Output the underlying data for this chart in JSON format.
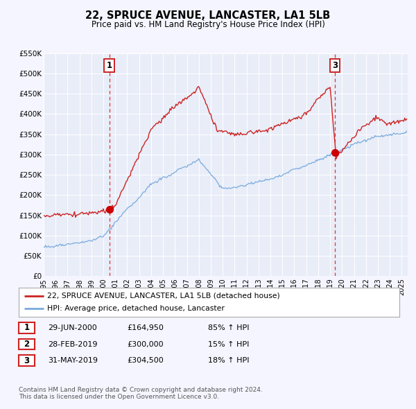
{
  "title": "22, SPRUCE AVENUE, LANCASTER, LA1 5LB",
  "subtitle": "Price paid vs. HM Land Registry's House Price Index (HPI)",
  "background_color": "#f5f5ff",
  "plot_bg_color": "#e8edf8",
  "hpi_color": "#7aaadd",
  "price_color": "#cc2222",
  "vline_color": "#dd3333",
  "marker_color": "#cc0000",
  "sale_1_x": 2000.49,
  "sale_1_y": 164950,
  "sale_3_x": 2019.41,
  "sale_3_y": 304500,
  "ylim": [
    0,
    550000
  ],
  "yticks": [
    0,
    50000,
    100000,
    150000,
    200000,
    250000,
    300000,
    350000,
    400000,
    450000,
    500000,
    550000
  ],
  "ytick_labels": [
    "£0",
    "£50K",
    "£100K",
    "£150K",
    "£200K",
    "£250K",
    "£300K",
    "£350K",
    "£400K",
    "£450K",
    "£500K",
    "£550K"
  ],
  "xmin": 1995.0,
  "xmax": 2025.5,
  "legend_label_price": "22, SPRUCE AVENUE, LANCASTER, LA1 5LB (detached house)",
  "legend_label_hpi": "HPI: Average price, detached house, Lancaster",
  "table_rows": [
    [
      "1",
      "29-JUN-2000",
      "£164,950",
      "85% ↑ HPI"
    ],
    [
      "2",
      "28-FEB-2019",
      "£300,000",
      "15% ↑ HPI"
    ],
    [
      "3",
      "31-MAY-2019",
      "£304,500",
      "18% ↑ HPI"
    ]
  ],
  "footnote": "Contains HM Land Registry data © Crown copyright and database right 2024.\nThis data is licensed under the Open Government Licence v3.0."
}
